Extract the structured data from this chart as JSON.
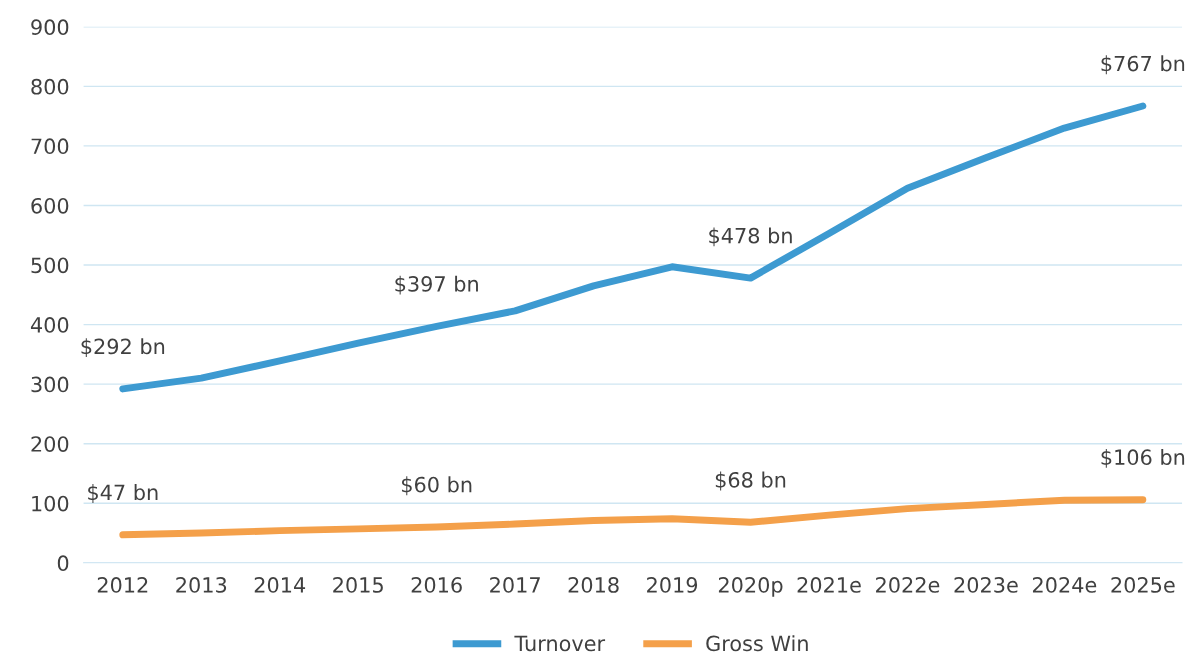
{
  "chart_data": {
    "type": "line",
    "categories": [
      "2012",
      "2013",
      "2014",
      "2015",
      "2016",
      "2017",
      "2018",
      "2019",
      "2020p",
      "2021e",
      "2022e",
      "2023e",
      "2024e",
      "2025e"
    ],
    "series": [
      {
        "name": "Turnover",
        "color": "#3d9ad1",
        "values": [
          292,
          310,
          339,
          369,
          397,
          423,
          465,
          497,
          478,
          553,
          629,
          680,
          730,
          767
        ],
        "value_labels": [
          "$292 bn",
          null,
          null,
          null,
          "$397 bn",
          null,
          null,
          null,
          "$478 bn",
          null,
          null,
          null,
          null,
          "$767 bn"
        ]
      },
      {
        "name": "Gross Win",
        "color": "#f4a04a",
        "values": [
          47,
          50,
          54,
          57,
          60,
          65,
          71,
          74,
          68,
          80,
          91,
          98,
          105,
          106
        ],
        "value_labels": [
          "$47 bn",
          null,
          null,
          null,
          "$60 bn",
          null,
          null,
          null,
          "$68 bn",
          null,
          null,
          null,
          null,
          "$106 bn"
        ]
      }
    ],
    "ylim": [
      0,
      900
    ],
    "yticks": [
      0,
      100,
      200,
      300,
      400,
      500,
      600,
      700,
      800,
      900
    ],
    "grid": "y",
    "legend": "bottom",
    "marker": "none",
    "line_style": "solid"
  }
}
